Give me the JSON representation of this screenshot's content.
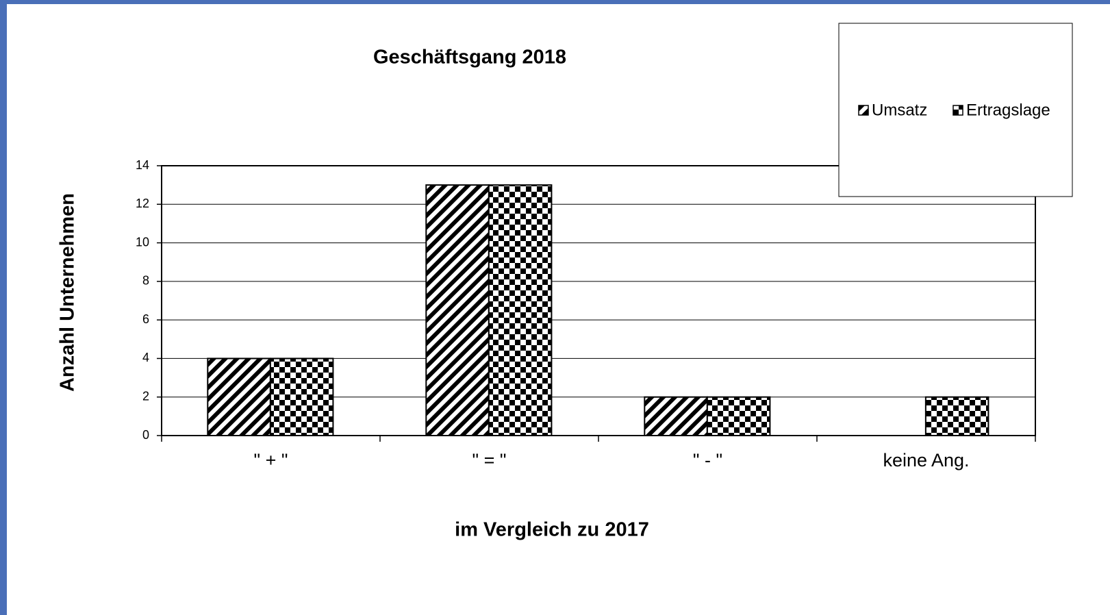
{
  "chart_data": {
    "type": "bar",
    "title": "Geschäftsgang 2018",
    "xlabel": "im Vergleich zu 2017",
    "ylabel": "Anzahl Unternehmen",
    "categories": [
      "\" + \"",
      "\" = \"",
      "\" - \"",
      "keine Ang."
    ],
    "series": [
      {
        "name": "Umsatz",
        "color": "#000000",
        "values": [
          4,
          13,
          2,
          0
        ]
      },
      {
        "name": "Ertragslage",
        "color": "#000000",
        "values": [
          4,
          13,
          2,
          2
        ]
      }
    ],
    "ylim": [
      0,
      14
    ],
    "yticks": [
      0,
      2,
      4,
      6,
      8,
      10,
      12,
      14
    ],
    "grid": true,
    "legend": "upper right"
  }
}
